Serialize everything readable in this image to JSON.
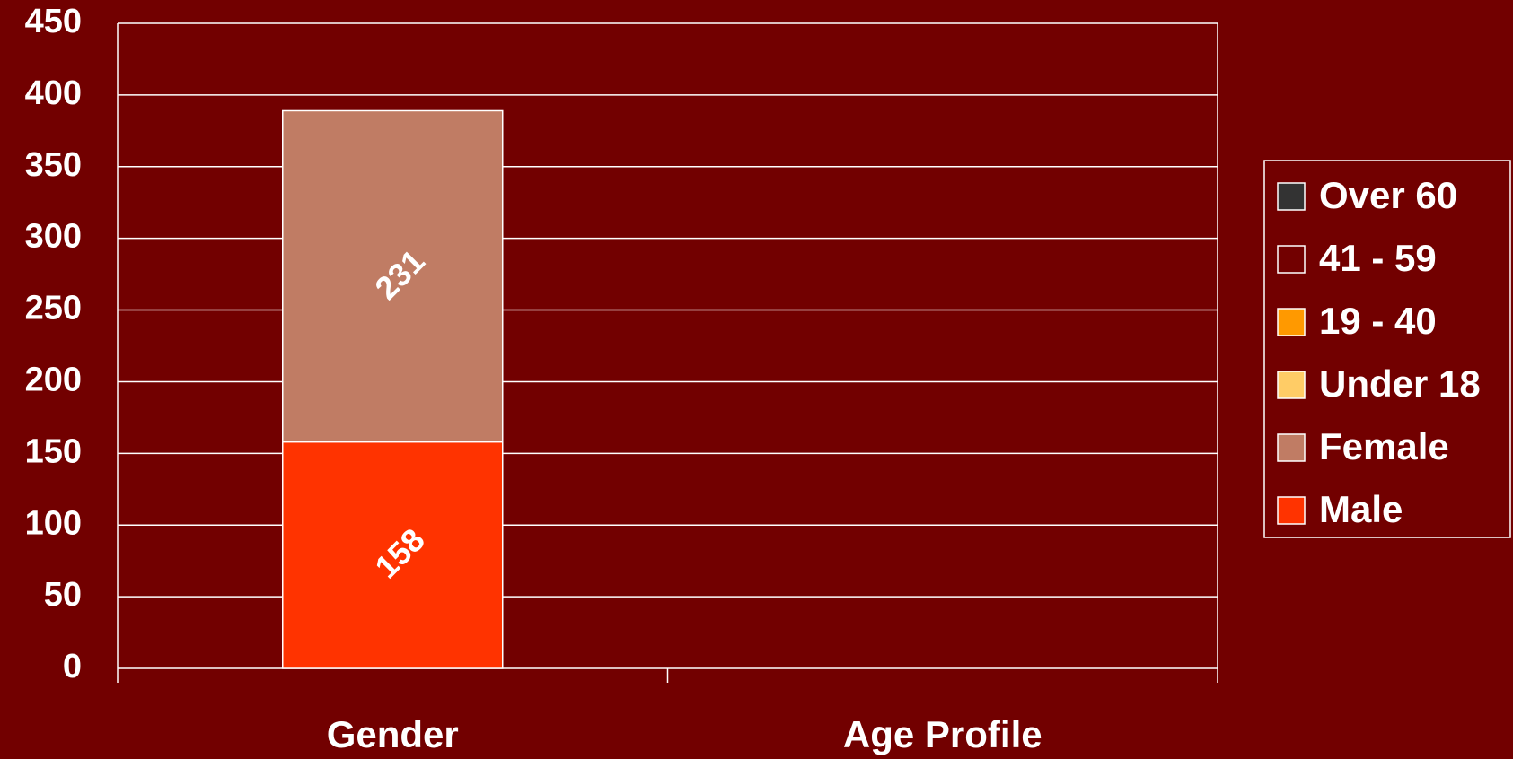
{
  "chart_data": {
    "type": "stacked_bar",
    "categories": [
      "Gender",
      "Age Profile"
    ],
    "series": [
      {
        "name": "Male",
        "color": "#ff3300",
        "values": [
          158,
          null
        ]
      },
      {
        "name": "Female",
        "color": "#c07c64",
        "values": [
          231,
          null
        ]
      },
      {
        "name": "Under 18",
        "color": "#ffcc66",
        "values": [
          null,
          null
        ]
      },
      {
        "name": "19 - 40",
        "color": "#ff9900",
        "values": [
          null,
          null
        ]
      },
      {
        "name": "41 - 59",
        "color": "#720000",
        "values": [
          null,
          null
        ]
      },
      {
        "name": "Over 60",
        "color": "#333333",
        "values": [
          null,
          null
        ]
      }
    ],
    "ylim": [
      0,
      450
    ],
    "yticks": [
      0,
      50,
      100,
      150,
      200,
      250,
      300,
      350,
      400,
      450
    ],
    "grid": true,
    "legend": "right"
  }
}
